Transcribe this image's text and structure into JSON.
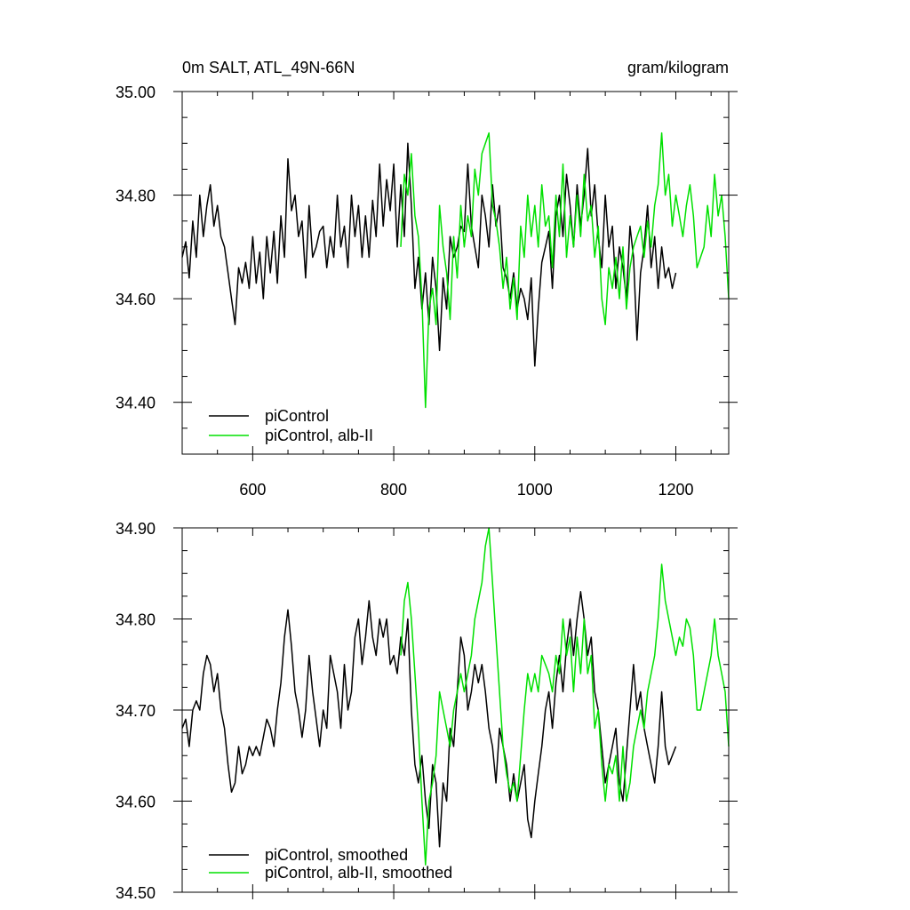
{
  "chart_data": [
    {
      "type": "line",
      "title": "0m SALT, ATL_49N-66N",
      "units": "gram/kilogram",
      "xlim": [
        500,
        1275
      ],
      "ylim": [
        34.3,
        35.0
      ],
      "xticks": [
        {
          "value": 600,
          "label": "600"
        },
        {
          "value": 800,
          "label": "800"
        },
        {
          "value": 1000,
          "label": "1000"
        },
        {
          "value": 1200,
          "label": "1200"
        }
      ],
      "yticks": [
        {
          "value": 34.4,
          "label": "34.40"
        },
        {
          "value": 34.6,
          "label": "34.60"
        },
        {
          "value": 34.8,
          "label": "34.80"
        },
        {
          "value": 35.0,
          "label": "35.00"
        }
      ],
      "legend_position": "bottom-left",
      "series": [
        {
          "name": "piControl",
          "color": "#000000",
          "x": [
            500,
            505,
            510,
            515,
            520,
            525,
            530,
            535,
            540,
            545,
            550,
            555,
            560,
            565,
            570,
            575,
            580,
            585,
            590,
            595,
            600,
            605,
            610,
            615,
            620,
            625,
            630,
            635,
            640,
            645,
            650,
            655,
            660,
            665,
            670,
            675,
            680,
            685,
            690,
            695,
            700,
            705,
            710,
            715,
            720,
            725,
            730,
            735,
            740,
            745,
            750,
            755,
            760,
            765,
            770,
            775,
            780,
            785,
            790,
            795,
            800,
            805,
            810,
            815,
            820,
            825,
            830,
            835,
            840,
            845,
            850,
            855,
            860,
            865,
            870,
            875,
            880,
            885,
            890,
            895,
            900,
            905,
            910,
            915,
            920,
            925,
            930,
            935,
            940,
            945,
            950,
            955,
            960,
            965,
            970,
            975,
            980,
            985,
            990,
            995,
            1000,
            1005,
            1010,
            1015,
            1020,
            1025,
            1030,
            1035,
            1040,
            1045,
            1050,
            1055,
            1060,
            1065,
            1070,
            1075,
            1080,
            1085,
            1090,
            1095,
            1100,
            1105,
            1110,
            1115,
            1120,
            1125,
            1130,
            1135,
            1140,
            1145,
            1150,
            1155,
            1160,
            1165,
            1170,
            1175,
            1180,
            1185,
            1190,
            1195,
            1200
          ],
          "y": [
            34.68,
            34.71,
            34.64,
            34.75,
            34.68,
            34.8,
            34.72,
            34.78,
            34.82,
            34.74,
            34.78,
            34.72,
            34.7,
            34.65,
            34.6,
            34.55,
            34.66,
            34.63,
            34.67,
            34.62,
            34.72,
            34.63,
            34.69,
            34.6,
            34.72,
            34.65,
            34.73,
            34.63,
            34.76,
            34.68,
            34.87,
            34.77,
            34.8,
            34.72,
            34.75,
            34.64,
            34.78,
            34.68,
            34.7,
            34.73,
            34.74,
            34.66,
            34.72,
            34.68,
            34.8,
            34.7,
            34.74,
            34.66,
            34.8,
            34.72,
            34.78,
            34.68,
            34.76,
            34.68,
            34.79,
            34.72,
            34.86,
            34.74,
            34.83,
            34.77,
            34.86,
            34.7,
            34.82,
            34.72,
            34.9,
            34.78,
            34.62,
            34.68,
            34.58,
            34.65,
            34.55,
            34.68,
            34.62,
            34.5,
            34.64,
            34.58,
            34.72,
            34.68,
            34.7,
            34.74,
            34.73,
            34.86,
            34.74,
            34.7,
            34.66,
            34.8,
            34.76,
            34.7,
            34.82,
            34.74,
            34.78,
            34.66,
            34.64,
            34.6,
            34.65,
            34.58,
            34.62,
            34.6,
            34.56,
            34.64,
            34.47,
            34.58,
            34.67,
            34.7,
            34.73,
            34.62,
            34.76,
            34.8,
            34.72,
            34.84,
            34.78,
            34.7,
            34.82,
            34.74,
            34.8,
            34.89,
            34.76,
            34.82,
            34.72,
            34.66,
            34.8,
            34.7,
            34.74,
            34.62,
            34.7,
            34.66,
            34.6,
            34.74,
            34.68,
            34.52,
            34.65,
            34.7,
            34.78,
            34.66,
            34.72,
            34.62,
            34.7,
            34.64,
            34.66,
            34.62,
            34.65
          ]
        },
        {
          "name": "piControl, alb-II",
          "color": "#00e000",
          "x": [
            810,
            815,
            820,
            825,
            830,
            835,
            840,
            845,
            850,
            855,
            860,
            865,
            870,
            875,
            880,
            885,
            890,
            895,
            900,
            905,
            910,
            915,
            920,
            925,
            930,
            935,
            940,
            945,
            950,
            955,
            960,
            965,
            970,
            975,
            980,
            985,
            990,
            995,
            1000,
            1005,
            1010,
            1015,
            1020,
            1025,
            1030,
            1035,
            1040,
            1045,
            1050,
            1055,
            1060,
            1065,
            1070,
            1075,
            1080,
            1085,
            1090,
            1095,
            1100,
            1105,
            1110,
            1115,
            1120,
            1125,
            1130,
            1135,
            1140,
            1145,
            1150,
            1155,
            1160,
            1165,
            1170,
            1175,
            1180,
            1185,
            1190,
            1195,
            1200,
            1205,
            1210,
            1215,
            1220,
            1225,
            1230,
            1235,
            1240,
            1245,
            1250,
            1255,
            1260,
            1265,
            1270,
            1275
          ],
          "y": [
            34.7,
            34.84,
            34.8,
            34.88,
            34.76,
            34.72,
            34.6,
            34.39,
            34.58,
            34.62,
            34.55,
            34.78,
            34.7,
            34.65,
            34.56,
            34.72,
            34.64,
            34.78,
            34.7,
            34.76,
            34.72,
            34.85,
            34.8,
            34.88,
            34.9,
            34.92,
            34.78,
            34.75,
            34.7,
            34.62,
            34.68,
            34.58,
            34.64,
            34.56,
            34.74,
            34.68,
            34.8,
            34.72,
            34.78,
            34.7,
            34.82,
            34.74,
            34.76,
            34.66,
            34.8,
            34.72,
            34.86,
            34.68,
            34.76,
            34.7,
            34.8,
            34.72,
            34.84,
            34.75,
            34.78,
            34.68,
            34.74,
            34.6,
            34.55,
            34.66,
            34.62,
            34.68,
            34.6,
            34.7,
            34.58,
            34.66,
            34.7,
            34.72,
            34.74,
            34.68,
            34.75,
            34.7,
            34.78,
            34.82,
            34.92,
            34.8,
            34.84,
            34.74,
            34.8,
            34.76,
            34.72,
            34.78,
            34.82,
            34.76,
            34.66,
            34.68,
            34.7,
            34.78,
            34.72,
            34.84,
            34.76,
            34.8,
            34.72,
            34.6
          ]
        }
      ]
    },
    {
      "type": "line",
      "xlim": [
        500,
        1275
      ],
      "ylim": [
        34.5,
        34.9
      ],
      "yticks": [
        {
          "value": 34.5,
          "label": "34.50"
        },
        {
          "value": 34.6,
          "label": "34.60"
        },
        {
          "value": 34.7,
          "label": "34.70"
        },
        {
          "value": 34.8,
          "label": "34.80"
        },
        {
          "value": 34.9,
          "label": "34.90"
        }
      ],
      "legend_position": "bottom-left",
      "series": [
        {
          "name": "piControl, smoothed",
          "color": "#000000",
          "x": [
            500,
            505,
            510,
            515,
            520,
            525,
            530,
            535,
            540,
            545,
            550,
            555,
            560,
            565,
            570,
            575,
            580,
            585,
            590,
            595,
            600,
            605,
            610,
            615,
            620,
            625,
            630,
            635,
            640,
            645,
            650,
            655,
            660,
            665,
            670,
            675,
            680,
            685,
            690,
            695,
            700,
            705,
            710,
            715,
            720,
            725,
            730,
            735,
            740,
            745,
            750,
            755,
            760,
            765,
            770,
            775,
            780,
            785,
            790,
            795,
            800,
            805,
            810,
            815,
            820,
            825,
            830,
            835,
            840,
            845,
            850,
            855,
            860,
            865,
            870,
            875,
            880,
            885,
            890,
            895,
            900,
            905,
            910,
            915,
            920,
            925,
            930,
            935,
            940,
            945,
            950,
            955,
            960,
            965,
            970,
            975,
            980,
            985,
            990,
            995,
            1000,
            1005,
            1010,
            1015,
            1020,
            1025,
            1030,
            1035,
            1040,
            1045,
            1050,
            1055,
            1060,
            1065,
            1070,
            1075,
            1080,
            1085,
            1090,
            1095,
            1100,
            1105,
            1110,
            1115,
            1120,
            1125,
            1130,
            1135,
            1140,
            1145,
            1150,
            1155,
            1160,
            1165,
            1170,
            1175,
            1180,
            1185,
            1190,
            1195,
            1200
          ],
          "y": [
            34.68,
            34.69,
            34.66,
            34.7,
            34.71,
            34.7,
            34.74,
            34.76,
            34.75,
            34.72,
            34.74,
            34.7,
            34.68,
            34.64,
            34.61,
            34.62,
            34.66,
            34.63,
            34.64,
            34.66,
            34.65,
            34.66,
            34.65,
            34.67,
            34.69,
            34.68,
            34.66,
            34.7,
            34.73,
            34.78,
            34.81,
            34.77,
            34.72,
            34.7,
            34.67,
            34.7,
            34.76,
            34.72,
            34.69,
            34.66,
            34.7,
            34.68,
            34.76,
            34.74,
            34.72,
            34.68,
            34.75,
            34.7,
            34.72,
            34.78,
            34.8,
            34.75,
            34.78,
            34.82,
            34.78,
            34.76,
            34.8,
            34.78,
            34.8,
            34.75,
            34.76,
            34.74,
            34.78,
            34.76,
            34.8,
            34.7,
            34.64,
            34.62,
            34.65,
            34.6,
            34.57,
            34.64,
            34.62,
            34.55,
            34.62,
            34.6,
            34.68,
            34.66,
            34.72,
            34.78,
            34.76,
            34.7,
            34.72,
            34.75,
            34.73,
            34.75,
            34.72,
            34.68,
            34.66,
            34.62,
            34.68,
            34.66,
            34.64,
            34.6,
            34.63,
            34.6,
            34.62,
            34.64,
            34.58,
            34.56,
            34.6,
            34.63,
            34.66,
            34.7,
            34.72,
            34.68,
            34.73,
            34.76,
            34.72,
            34.77,
            34.8,
            34.76,
            34.8,
            34.83,
            34.8,
            34.76,
            34.78,
            34.72,
            34.7,
            34.66,
            34.62,
            34.64,
            34.66,
            34.68,
            34.62,
            34.6,
            34.65,
            34.7,
            34.75,
            34.7,
            34.72,
            34.68,
            34.66,
            34.64,
            34.62,
            34.66,
            34.72,
            34.66,
            34.64,
            34.65,
            34.66
          ]
        },
        {
          "name": "piControl, alb-II, smoothed",
          "color": "#00e000",
          "x": [
            810,
            815,
            820,
            825,
            830,
            835,
            840,
            845,
            850,
            855,
            860,
            865,
            870,
            875,
            880,
            885,
            890,
            895,
            900,
            905,
            910,
            915,
            920,
            925,
            930,
            935,
            940,
            945,
            950,
            955,
            960,
            965,
            970,
            975,
            980,
            985,
            990,
            995,
            1000,
            1005,
            1010,
            1015,
            1020,
            1025,
            1030,
            1035,
            1040,
            1045,
            1050,
            1055,
            1060,
            1065,
            1070,
            1075,
            1080,
            1085,
            1090,
            1095,
            1100,
            1105,
            1110,
            1115,
            1120,
            1125,
            1130,
            1135,
            1140,
            1145,
            1150,
            1155,
            1160,
            1165,
            1170,
            1175,
            1180,
            1185,
            1190,
            1195,
            1200,
            1205,
            1210,
            1215,
            1220,
            1225,
            1230,
            1235,
            1240,
            1245,
            1250,
            1255,
            1260,
            1265,
            1270,
            1275
          ],
          "y": [
            34.76,
            34.82,
            34.84,
            34.8,
            34.74,
            34.68,
            34.6,
            34.53,
            34.6,
            34.62,
            34.65,
            34.72,
            34.7,
            34.68,
            34.66,
            34.7,
            34.72,
            34.74,
            34.72,
            34.74,
            34.76,
            34.8,
            34.82,
            34.84,
            34.88,
            34.9,
            34.84,
            34.78,
            34.72,
            34.66,
            34.63,
            34.61,
            34.62,
            34.6,
            34.65,
            34.7,
            34.74,
            34.72,
            34.74,
            34.72,
            34.76,
            34.75,
            34.74,
            34.72,
            34.76,
            34.74,
            34.8,
            34.76,
            34.78,
            34.72,
            34.78,
            34.74,
            34.8,
            34.74,
            34.76,
            34.68,
            34.7,
            34.64,
            34.6,
            34.64,
            34.63,
            34.65,
            34.6,
            34.66,
            34.6,
            34.62,
            34.66,
            34.68,
            34.7,
            34.68,
            34.72,
            34.74,
            34.76,
            34.8,
            34.86,
            34.82,
            34.8,
            34.78,
            34.76,
            34.78,
            34.77,
            34.8,
            34.79,
            34.76,
            34.7,
            34.7,
            34.72,
            34.74,
            34.76,
            34.8,
            34.76,
            34.74,
            34.72,
            34.66
          ]
        }
      ]
    }
  ]
}
